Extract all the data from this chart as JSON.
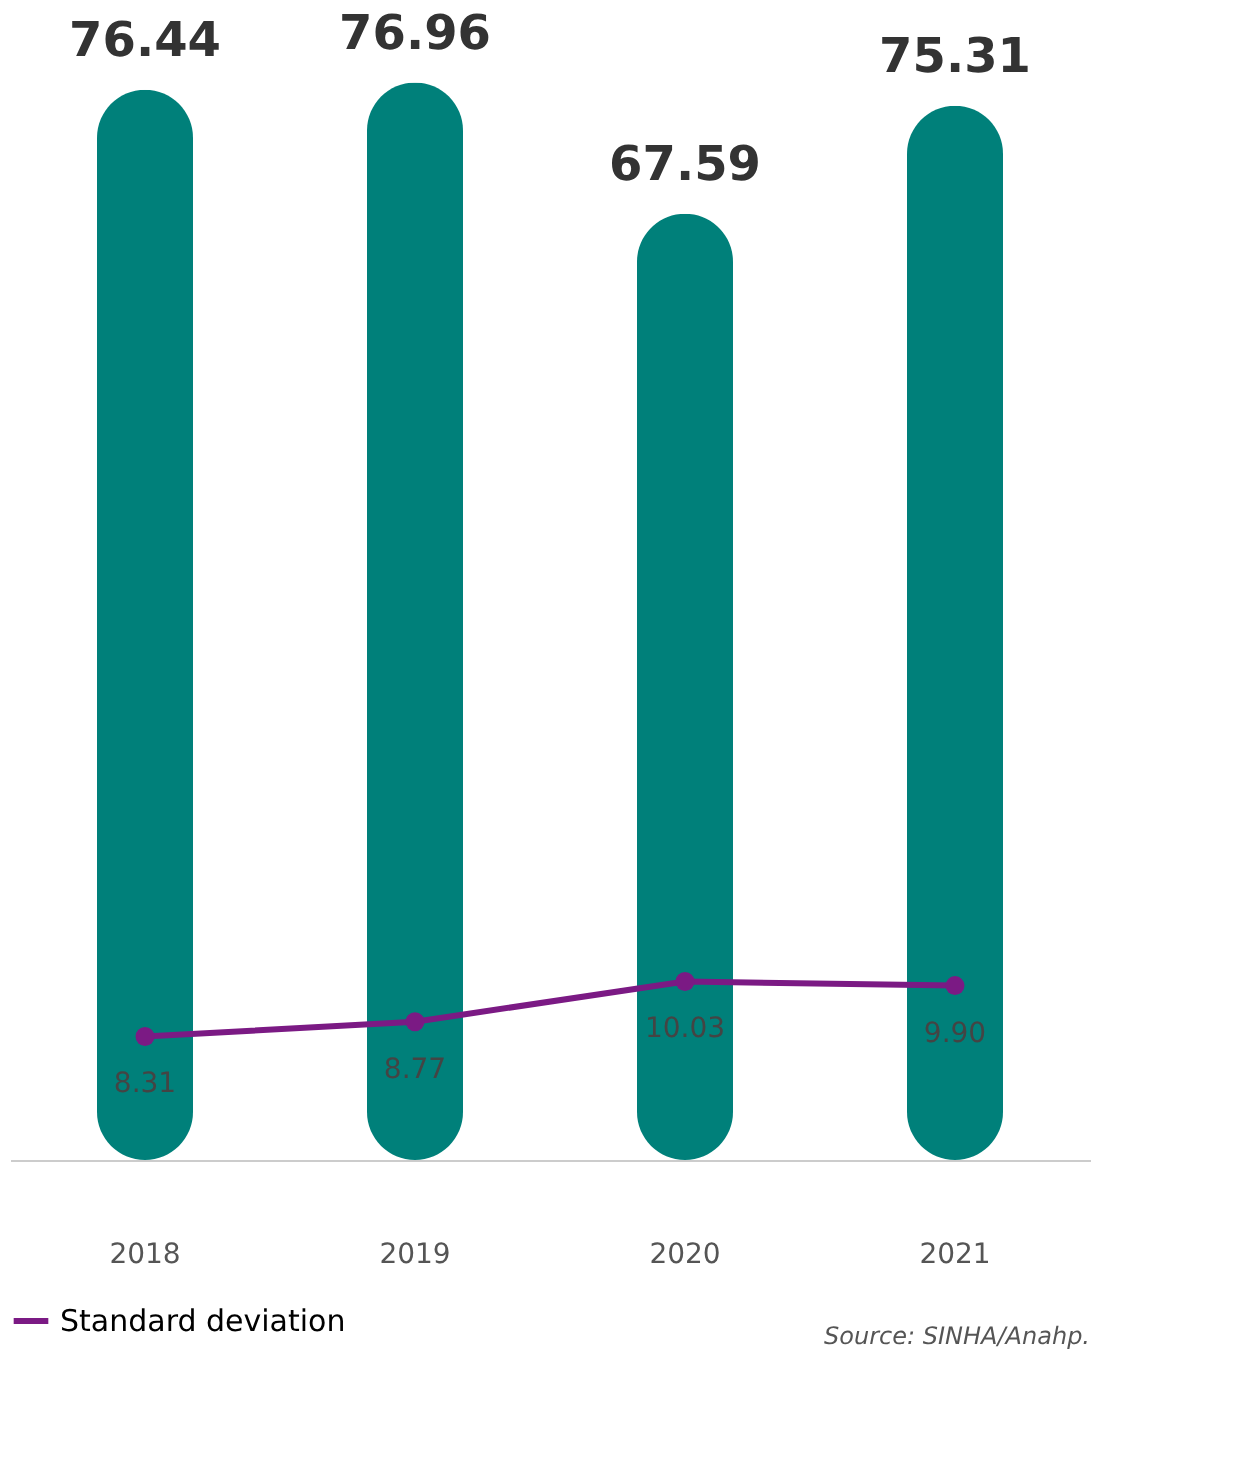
{
  "chart_data": {
    "type": "bar",
    "categories": [
      "2018",
      "2019",
      "2020",
      "2021"
    ],
    "series": [
      {
        "color": "#00807a",
        "values": [
          76.44,
          76.96,
          67.59,
          75.31
        ]
      },
      {
        "type": "line",
        "axis": "y2",
        "name": "Standard deviation",
        "color": "#7b1a84",
        "values": [
          8.31,
          8.77,
          10.03,
          9.9
        ],
        "value_labels": [
          "8.31",
          "8.77",
          "10.03",
          "9.90"
        ]
      }
    ],
    "data_labels": true,
    "marker": "circle",
    "grid": false,
    "legend": "bottom left",
    "annotations": [
      "Source: SINHA/Anahp."
    ]
  }
}
